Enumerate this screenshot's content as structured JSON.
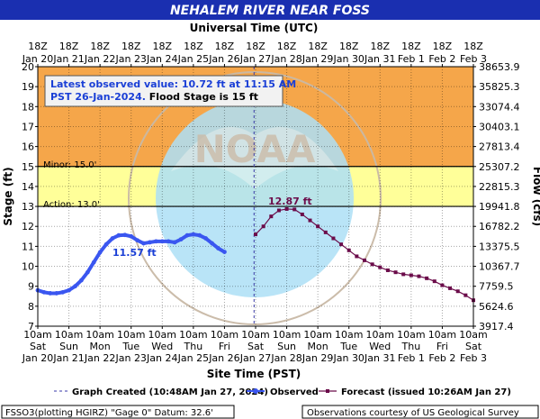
{
  "page": {
    "title": "NEHALEM RIVER NEAR FOSS",
    "top_axis_title": "Universal Time (UTC)",
    "bottom_axis_title": "Site Time (PST)",
    "left_axis_title": "Stage (ft)",
    "right_axis_title": "Flow (cfs)"
  },
  "colors": {
    "title_bar": "#1a2fb0",
    "flood_zone": "#f5a64a",
    "action_zone": "#ffff99",
    "observed": "#3a56f0",
    "forecast": "#6b0c4a",
    "created_line": "#3a3aa8",
    "emblem_light": "#aee0f6",
    "emblem_ring": "#9aa6b0"
  },
  "latest": {
    "line1": "Latest observed value: 10.72 ft at 11:15 AM",
    "line2_blue": "PST 26-Jan-2024.",
    "line2_black": " Flood Stage is 15 ft"
  },
  "thresholds": {
    "minor_label": "Minor: 15.0'",
    "action_label": "Action: 13.0'"
  },
  "annotations": {
    "observed_peak_label": "11.57 ft",
    "forecast_peak_label": "12.87 ft"
  },
  "legend": {
    "created": "Graph Created (10:48AM Jan 27, 2024)",
    "observed": "Observed",
    "forecast": "Forecast (issued 10:26AM Jan 27)"
  },
  "footer": {
    "left": "FSSO3(plotting HGIRZ) \"Gage 0\" Datum: 32.6'",
    "right": "Observations courtesy of US Geological Survey"
  },
  "chart_data": {
    "type": "line",
    "title": "NEHALEM RIVER NEAR FOSS",
    "xlabel": "Site Time (PST)",
    "ylabel": "Stage (ft)",
    "y2label": "Flow (cfs)",
    "x_top_label": "Universal Time (UTC)",
    "xlim": [
      0,
      14
    ],
    "ylim": [
      7,
      20
    ],
    "grid": true,
    "y_ticks": [
      7,
      8,
      9,
      10,
      11,
      12,
      13,
      14,
      15,
      16,
      17,
      18,
      19,
      20
    ],
    "y2_ticks": [
      "3917.4",
      "5624.6",
      "7759.5",
      "10367.7",
      "13375.5",
      "16782.2",
      "19941.8",
      "22815.3",
      "25307.2",
      "27813.4",
      "30403.1",
      "33074.4",
      "35825.3",
      "38653.9"
    ],
    "x_ticks_bottom": [
      {
        "time": "10am",
        "day": "Sat",
        "date": "Jan 20"
      },
      {
        "time": "10am",
        "day": "Sun",
        "date": "Jan 21"
      },
      {
        "time": "10am",
        "day": "Mon",
        "date": "Jan 22"
      },
      {
        "time": "10am",
        "day": "Tue",
        "date": "Jan 23"
      },
      {
        "time": "10am",
        "day": "Wed",
        "date": "Jan 24"
      },
      {
        "time": "10am",
        "day": "Thu",
        "date": "Jan 25"
      },
      {
        "time": "10am",
        "day": "Fri",
        "date": "Jan 26"
      },
      {
        "time": "10am",
        "day": "Sat",
        "date": "Jan 27"
      },
      {
        "time": "10am",
        "day": "Sun",
        "date": "Jan 28"
      },
      {
        "time": "10am",
        "day": "Mon",
        "date": "Jan 29"
      },
      {
        "time": "10am",
        "day": "Tue",
        "date": "Jan 30"
      },
      {
        "time": "10am",
        "day": "Wed",
        "date": "Jan 31"
      },
      {
        "time": "10am",
        "day": "Thu",
        "date": "Feb 1"
      },
      {
        "time": "10am",
        "day": "Fri",
        "date": "Feb 2"
      },
      {
        "time": "10am",
        "day": "Sat",
        "date": "Feb 3"
      }
    ],
    "x_ticks_top": [
      {
        "time": "18Z",
        "date": "Jan 20"
      },
      {
        "time": "18Z",
        "date": "Jan 21"
      },
      {
        "time": "18Z",
        "date": "Jan 22"
      },
      {
        "time": "18Z",
        "date": "Jan 23"
      },
      {
        "time": "18Z",
        "date": "Jan 24"
      },
      {
        "time": "18Z",
        "date": "Jan 25"
      },
      {
        "time": "18Z",
        "date": "Jan 26"
      },
      {
        "time": "18Z",
        "date": "Jan 27"
      },
      {
        "time": "18Z",
        "date": "Jan 28"
      },
      {
        "time": "18Z",
        "date": "Jan 29"
      },
      {
        "time": "18Z",
        "date": "Jan 30"
      },
      {
        "time": "18Z",
        "date": "Jan 31"
      },
      {
        "time": "18Z",
        "date": "Feb 1"
      },
      {
        "time": "18Z",
        "date": "Feb 2"
      },
      {
        "time": "18Z",
        "date": "Feb 3"
      }
    ],
    "flood_stage": 15,
    "action_stage": 13,
    "graph_created_x": 6.95,
    "series": [
      {
        "name": "Observed",
        "x": [
          0,
          0.2,
          0.4,
          0.6,
          0.8,
          1.0,
          1.2,
          1.4,
          1.6,
          1.8,
          2.0,
          2.2,
          2.4,
          2.6,
          2.8,
          3.0,
          3.2,
          3.4,
          3.6,
          3.8,
          4.0,
          4.2,
          4.4,
          4.6,
          4.8,
          5.0,
          5.2,
          5.4,
          5.6,
          5.8,
          6.0
        ],
        "values": [
          8.8,
          8.7,
          8.65,
          8.65,
          8.7,
          8.8,
          9.0,
          9.3,
          9.7,
          10.2,
          10.7,
          11.1,
          11.4,
          11.55,
          11.57,
          11.5,
          11.3,
          11.15,
          11.2,
          11.25,
          11.25,
          11.25,
          11.2,
          11.35,
          11.55,
          11.6,
          11.55,
          11.4,
          11.15,
          10.9,
          10.72
        ]
      },
      {
        "name": "Forecast (issued 10:26AM Jan 27)",
        "x": [
          7.0,
          7.25,
          7.5,
          7.75,
          8.0,
          8.25,
          8.5,
          8.75,
          9.0,
          9.25,
          9.5,
          9.75,
          10.0,
          10.25,
          10.5,
          10.75,
          11.0,
          11.25,
          11.5,
          11.75,
          12.0,
          12.25,
          12.5,
          12.75,
          13.0,
          13.25,
          13.5,
          13.75,
          14.0
        ],
        "values": [
          11.6,
          12.0,
          12.5,
          12.8,
          12.87,
          12.85,
          12.6,
          12.3,
          12.0,
          11.7,
          11.4,
          11.1,
          10.8,
          10.5,
          10.3,
          10.1,
          9.95,
          9.8,
          9.7,
          9.6,
          9.55,
          9.5,
          9.4,
          9.25,
          9.05,
          8.9,
          8.75,
          8.55,
          8.3
        ]
      }
    ]
  }
}
